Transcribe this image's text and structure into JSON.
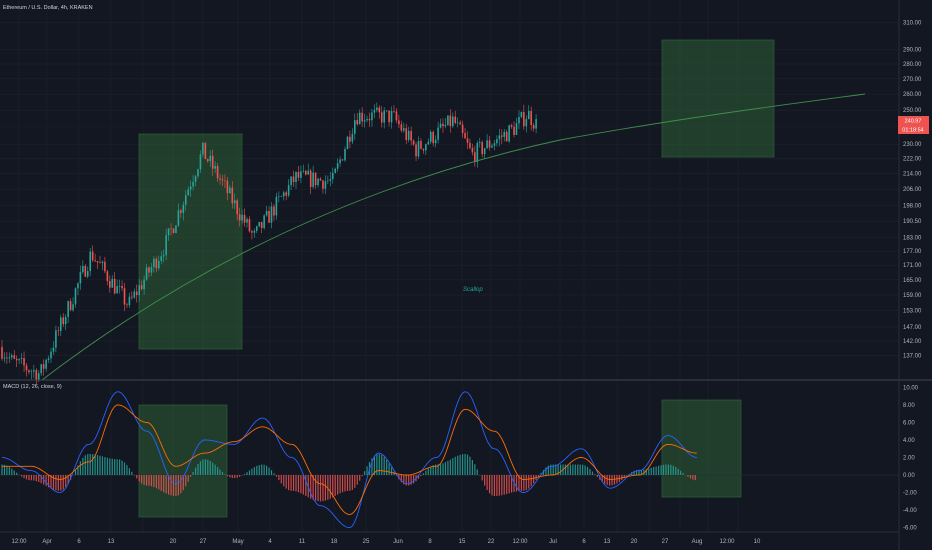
{
  "header": {
    "title": "Ethereum / U.S. Dollar, 4h, KRAKEN",
    "macd_title": "MACD (12, 26, close, 9)",
    "annotation": "Scallop",
    "price_badge": "240.97",
    "countdown_badge": "01:18:54"
  },
  "colors": {
    "background": "#131722",
    "up": "#26a69a",
    "down": "#ef5350",
    "arc": "#3f8f4b",
    "zone_fill": "#2e5e36",
    "macd_line": "#2962ff",
    "signal_line": "#ff6d00",
    "badge": "#ef5350"
  },
  "chart_data": [
    {
      "type": "candlestick",
      "title": "Ethereum / U.S. Dollar, 4h, KRAKEN",
      "price_scale": "log",
      "ylim": [
        131,
        318
      ],
      "y_ticks": [
        "310.00",
        "290.00",
        "280.00",
        "270.00",
        "260.00",
        "250.00",
        "240.00",
        "230.00",
        "222.00",
        "214.00",
        "206.00",
        "198.00",
        "190.50",
        "183.00",
        "177.00",
        "171.00",
        "165.00",
        "159.00",
        "153.00",
        "147.00",
        "142.00",
        "137.00"
      ],
      "x_ticks": [
        "12:00",
        "Apr",
        "6",
        "13",
        "20",
        "27",
        "May",
        "4",
        "11",
        "18",
        "25",
        "Jun",
        "8",
        "15",
        "22",
        "12:00",
        "Jul",
        "6",
        "13",
        "20",
        "27",
        "Aug",
        "12:00",
        "10"
      ],
      "key_prices": [
        {
          "date": "2020-03-20",
          "price": 135
        },
        {
          "date": "2020-03-26",
          "price": 131
        },
        {
          "date": "2020-04-06",
          "price": 176
        },
        {
          "date": "2020-04-14",
          "price": 155
        },
        {
          "date": "2020-04-22",
          "price": 180
        },
        {
          "date": "2020-04-30",
          "price": 226
        },
        {
          "date": "2020-05-04",
          "price": 210
        },
        {
          "date": "2020-05-11",
          "price": 183
        },
        {
          "date": "2020-05-20",
          "price": 212
        },
        {
          "date": "2020-05-28",
          "price": 210
        },
        {
          "date": "2020-06-02",
          "price": 247
        },
        {
          "date": "2020-06-10",
          "price": 246
        },
        {
          "date": "2020-06-15",
          "price": 227
        },
        {
          "date": "2020-06-23",
          "price": 244
        },
        {
          "date": "2020-06-27",
          "price": 224
        },
        {
          "date": "2020-07-06",
          "price": 239
        },
        {
          "date": "2020-07-09",
          "price": 248
        },
        {
          "date": "2020-07-11",
          "price": 241
        }
      ],
      "last_price": 240.97,
      "annotations": [
        "Scallop"
      ]
    },
    {
      "type": "bar",
      "title": "MACD (12, 26, close, 9)",
      "ylim": [
        -6.5,
        10.5
      ],
      "y_ticks": [
        "10.00",
        "8.00",
        "6.00",
        "4.00",
        "2.00",
        "0.00",
        "-2.00",
        "-4.00",
        "-6.00"
      ],
      "series": [
        {
          "name": "MACD",
          "values": [
            2.0,
            0.5,
            -2.0,
            3.5,
            9.5,
            5.0,
            -1.0,
            4.0,
            3.5,
            6.5,
            2.0,
            -3.5,
            -6.0,
            2.5,
            -1.0,
            2.0,
            9.5,
            3.0,
            -2.0,
            1.0,
            3.0,
            -1.5,
            0.5,
            4.5,
            2.0
          ]
        },
        {
          "name": "Signal",
          "values": [
            1.0,
            1.0,
            -0.5,
            1.5,
            8.0,
            6.0,
            1.0,
            2.5,
            3.8,
            5.5,
            3.5,
            -1.0,
            -4.5,
            0.5,
            0.0,
            1.0,
            7.5,
            5.0,
            -0.5,
            0.0,
            2.0,
            -0.5,
            0.0,
            3.5,
            2.5
          ]
        }
      ]
    }
  ]
}
